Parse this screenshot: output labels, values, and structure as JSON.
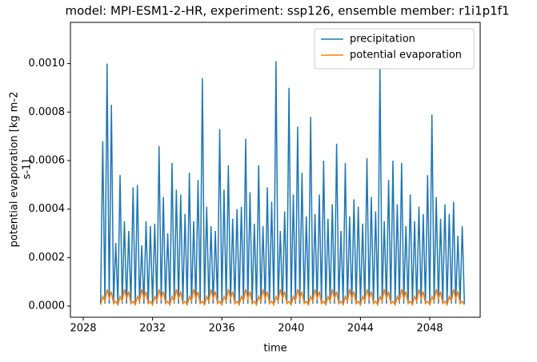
{
  "chart_data": {
    "type": "line",
    "title": "model: MPI-ESM1-2-HR, experiment: ssp126, ensemble member: r1i1p1f1",
    "xlabel": "time",
    "ylabel": [
      "potential evaporation [kg m-2",
      "s-1]"
    ],
    "x": [
      2029,
      2029.125,
      2029.25,
      2029.375,
      2029.5,
      2029.625,
      2029.75,
      2029.875,
      2030,
      2030.125,
      2030.25,
      2030.375,
      2030.5,
      2030.625,
      2030.75,
      2030.875,
      2031,
      2031.125,
      2031.25,
      2031.375,
      2031.5,
      2031.625,
      2031.75,
      2031.875,
      2032,
      2032.125,
      2032.25,
      2032.375,
      2032.5,
      2032.625,
      2032.75,
      2032.875,
      2033,
      2033.125,
      2033.25,
      2033.375,
      2033.5,
      2033.625,
      2033.75,
      2033.875,
      2034,
      2034.125,
      2034.25,
      2034.375,
      2034.5,
      2034.625,
      2034.75,
      2034.875,
      2035,
      2035.125,
      2035.25,
      2035.375,
      2035.5,
      2035.625,
      2035.75,
      2035.875,
      2036,
      2036.125,
      2036.25,
      2036.375,
      2036.5,
      2036.625,
      2036.75,
      2036.875,
      2037,
      2037.125,
      2037.25,
      2037.375,
      2037.5,
      2037.625,
      2037.75,
      2037.875,
      2038,
      2038.125,
      2038.25,
      2038.375,
      2038.5,
      2038.625,
      2038.75,
      2038.875,
      2039,
      2039.125,
      2039.25,
      2039.375,
      2039.5,
      2039.625,
      2039.75,
      2039.875,
      2040,
      2040.125,
      2040.25,
      2040.375,
      2040.5,
      2040.625,
      2040.75,
      2040.875,
      2041,
      2041.125,
      2041.25,
      2041.375,
      2041.5,
      2041.625,
      2041.75,
      2041.875,
      2042,
      2042.125,
      2042.25,
      2042.375,
      2042.5,
      2042.625,
      2042.75,
      2042.875,
      2043,
      2043.125,
      2043.25,
      2043.375,
      2043.5,
      2043.625,
      2043.75,
      2043.875,
      2044,
      2044.125,
      2044.25,
      2044.375,
      2044.5,
      2044.625,
      2044.75,
      2044.875,
      2045,
      2045.125,
      2045.25,
      2045.375,
      2045.5,
      2045.625,
      2045.75,
      2045.875,
      2046,
      2046.125,
      2046.25,
      2046.375,
      2046.5,
      2046.625,
      2046.75,
      2046.875,
      2047,
      2047.125,
      2047.25,
      2047.375,
      2047.5,
      2047.625,
      2047.75,
      2047.875,
      2048,
      2048.125,
      2048.25,
      2048.375,
      2048.5,
      2048.625,
      2048.75,
      2048.875,
      2049,
      2049.125,
      2049.25,
      2049.375,
      2049.5,
      2049.625,
      2049.75,
      2049.875,
      2050
    ],
    "series": [
      {
        "name": "precipitation",
        "color": "#1f77b4",
        "values": [
          1e-05,
          0.00068,
          1e-05,
          0.001,
          1e-05,
          0.00083,
          1e-05,
          0.00026,
          1e-05,
          0.00054,
          1e-05,
          0.00035,
          1e-05,
          0.00031,
          1e-05,
          0.00049,
          1e-05,
          0.0005,
          1e-05,
          0.00025,
          1e-05,
          0.00035,
          1e-05,
          0.00033,
          1e-05,
          0.00034,
          1e-05,
          0.00066,
          1e-05,
          0.00045,
          1e-05,
          0.0003,
          1e-05,
          0.00059,
          1e-05,
          0.00048,
          1e-05,
          0.00046,
          1e-05,
          0.00038,
          1e-05,
          0.00055,
          1e-05,
          0.00035,
          1e-05,
          0.00052,
          1e-05,
          0.00094,
          1e-05,
          0.00041,
          1e-05,
          0.00033,
          1e-05,
          0.00031,
          1e-05,
          0.00073,
          1e-05,
          0.00048,
          1e-05,
          0.00058,
          1e-05,
          0.00036,
          1e-05,
          0.0004,
          1e-05,
          0.00041,
          1e-05,
          0.00069,
          1e-05,
          0.00047,
          1e-05,
          0.00034,
          1e-05,
          0.00058,
          1e-05,
          0.00033,
          1e-05,
          0.00049,
          1e-05,
          0.00043,
          1e-05,
          0.00101,
          1e-05,
          0.00031,
          1e-05,
          0.00039,
          1e-05,
          0.0009,
          1e-05,
          0.00046,
          1e-05,
          0.00074,
          1e-05,
          0.00055,
          1e-05,
          0.00037,
          1e-05,
          0.00078,
          1e-05,
          0.00038,
          1e-05,
          0.00046,
          1e-05,
          0.0006,
          1e-05,
          0.00036,
          1e-05,
          0.00042,
          1e-05,
          0.00067,
          1e-05,
          0.00031,
          1e-05,
          0.00059,
          1e-05,
          0.00037,
          1e-05,
          0.00044,
          1e-05,
          0.00041,
          1e-05,
          0.00034,
          1e-05,
          0.00061,
          1e-05,
          0.00045,
          1e-05,
          0.00039,
          1e-05,
          0.00098,
          1e-05,
          0.00035,
          1e-05,
          0.00052,
          1e-05,
          0.0006,
          1e-05,
          0.00042,
          1e-05,
          0.00059,
          1e-05,
          0.00033,
          1e-05,
          0.00046,
          1e-05,
          0.00035,
          1e-05,
          0.00041,
          1e-05,
          0.00038,
          1e-05,
          0.00054,
          1e-05,
          0.00079,
          1e-05,
          0.00045,
          1e-05,
          0.00036,
          1e-05,
          0.00042,
          1e-05,
          0.00038,
          1e-05,
          0.00043,
          1e-05,
          0.00029,
          1e-05,
          0.00033,
          1e-05
        ]
      },
      {
        "name": "potential evaporation",
        "color": "#ff7f0e",
        "values": [
          5e-06,
          4e-05,
          2e-05,
          7e-05,
          3e-05,
          6e-05,
          1e-05,
          2e-05,
          5e-06,
          4e-05,
          2e-05,
          7e-05,
          3e-05,
          6e-05,
          1e-05,
          2e-05,
          5e-06,
          4e-05,
          2e-05,
          7e-05,
          3e-05,
          6e-05,
          1e-05,
          2e-05,
          5e-06,
          4e-05,
          2e-05,
          7e-05,
          3e-05,
          6e-05,
          1e-05,
          2e-05,
          5e-06,
          4e-05,
          2e-05,
          7e-05,
          3e-05,
          6e-05,
          1e-05,
          2e-05,
          5e-06,
          4e-05,
          2e-05,
          7e-05,
          3e-05,
          6e-05,
          1e-05,
          2e-05,
          5e-06,
          4e-05,
          2e-05,
          7e-05,
          3e-05,
          6e-05,
          1e-05,
          2e-05,
          5e-06,
          4e-05,
          2e-05,
          7e-05,
          3e-05,
          6e-05,
          1e-05,
          2e-05,
          5e-06,
          4e-05,
          2e-05,
          7e-05,
          3e-05,
          6e-05,
          1e-05,
          2e-05,
          5e-06,
          4e-05,
          2e-05,
          7e-05,
          3e-05,
          6e-05,
          1e-05,
          2e-05,
          5e-06,
          4e-05,
          2e-05,
          7e-05,
          3e-05,
          6e-05,
          1e-05,
          2e-05,
          5e-06,
          4e-05,
          2e-05,
          7e-05,
          3e-05,
          6e-05,
          1e-05,
          2e-05,
          5e-06,
          4e-05,
          2e-05,
          7e-05,
          3e-05,
          6e-05,
          1e-05,
          2e-05,
          5e-06,
          4e-05,
          2e-05,
          7e-05,
          3e-05,
          6e-05,
          1e-05,
          2e-05,
          5e-06,
          4e-05,
          2e-05,
          7e-05,
          3e-05,
          6e-05,
          1e-05,
          2e-05,
          5e-06,
          4e-05,
          2e-05,
          7e-05,
          3e-05,
          6e-05,
          1e-05,
          2e-05,
          5e-06,
          4e-05,
          2e-05,
          7e-05,
          3e-05,
          6e-05,
          1e-05,
          2e-05,
          5e-06,
          4e-05,
          2e-05,
          7e-05,
          3e-05,
          6e-05,
          1e-05,
          2e-05,
          5e-06,
          4e-05,
          2e-05,
          7e-05,
          3e-05,
          6e-05,
          1e-05,
          2e-05,
          5e-06,
          4e-05,
          2e-05,
          7e-05,
          3e-05,
          6e-05,
          1e-05,
          2e-05,
          5e-06,
          4e-05,
          2e-05,
          7e-05,
          3e-05,
          6e-05,
          1e-05,
          2e-05,
          5e-06
        ]
      }
    ],
    "xlim": [
      2027.26,
      2050.91
    ],
    "ylim": [
      -4.6e-05,
      0.00117
    ],
    "xticks": [
      2028,
      2032,
      2036,
      2040,
      2044,
      2048
    ],
    "yticks": [
      {
        "value": 0,
        "label": "0.0000"
      },
      0.0002,
      0.0004,
      0.0006,
      0.0008,
      {
        "value": 0.001,
        "label": "0.0010"
      }
    ],
    "legend": "upper right"
  }
}
